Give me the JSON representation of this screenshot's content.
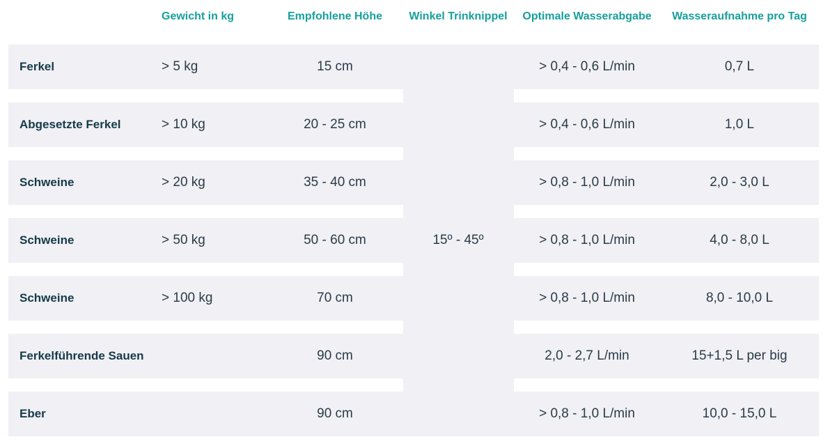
{
  "table": {
    "header": [
      "Gewicht in kg",
      "Empfohlene Höhe",
      "Winkel Trinknippel",
      "Optimale Wasserabgabe",
      "Wasseraufnahme pro Tag"
    ],
    "angle": "15º - 45º",
    "rows": [
      {
        "label": "Ferkel",
        "weight": "> 5 kg",
        "height": "15 cm",
        "flow": "> 0,4 - 0,6 L/min",
        "intake": "0,7 L"
      },
      {
        "label": "Abgesetzte Ferkel",
        "weight": "> 10 kg",
        "height": "20 - 25 cm",
        "flow": "> 0,4 - 0,6 L/min",
        "intake": "1,0 L"
      },
      {
        "label": "Schweine",
        "weight": "> 20 kg",
        "height": "35 - 40 cm",
        "flow": "> 0,8 - 1,0 L/min",
        "intake": "2,0 - 3,0 L"
      },
      {
        "label": "Schweine",
        "weight": "> 50 kg",
        "height": "50 - 60 cm",
        "flow": "> 0,8 - 1,0 L/min",
        "intake": "4,0 - 8,0 L"
      },
      {
        "label": "Schweine",
        "weight": "> 100 kg",
        "height": "70 cm",
        "flow": "> 0,8 - 1,0 L/min",
        "intake": "8,0 - 10,0 L"
      },
      {
        "label": "Ferkelführende Sauen",
        "height": "90 cm",
        "flow": "2,0 - 2,7 L/min",
        "intake": "15+1,5 L per big"
      },
      {
        "label": "Eber",
        "height": "90 cm",
        "flow": "> 0,8 - 1,0 L/min",
        "intake": "10,0 - 15,0 L"
      }
    ]
  }
}
